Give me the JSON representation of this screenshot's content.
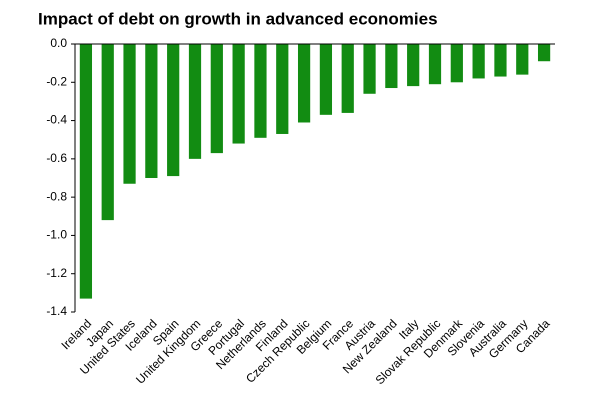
{
  "chart_data": {
    "type": "bar",
    "title": "Impact of debt on growth in advanced economies",
    "categories": [
      "Ireland",
      "Japan",
      "United States",
      "Iceland",
      "Spain",
      "United Kingdom",
      "Greece",
      "Portugal",
      "Netherlands",
      "Finland",
      "Czech Republic",
      "Belgium",
      "France",
      "Austria",
      "New Zealand",
      "Italy",
      "Slovak Republic",
      "Denmark",
      "Slovenia",
      "Australia",
      "Germany",
      "Canada"
    ],
    "values": [
      -1.33,
      -0.92,
      -0.73,
      -0.7,
      -0.69,
      -0.6,
      -0.57,
      -0.52,
      -0.49,
      -0.47,
      -0.41,
      -0.37,
      -0.36,
      -0.26,
      -0.23,
      -0.22,
      -0.21,
      -0.2,
      -0.18,
      -0.17,
      -0.16,
      -0.09
    ],
    "color": "#128c12",
    "ylim": [
      -1.4,
      0
    ],
    "yticks": [
      {
        "value": 0,
        "label": "0.0"
      },
      -0.2,
      -0.4,
      -0.6,
      -0.8,
      {
        "value": -1,
        "label": "-1.0"
      },
      -1.2,
      -1.4
    ],
    "grid": false
  }
}
